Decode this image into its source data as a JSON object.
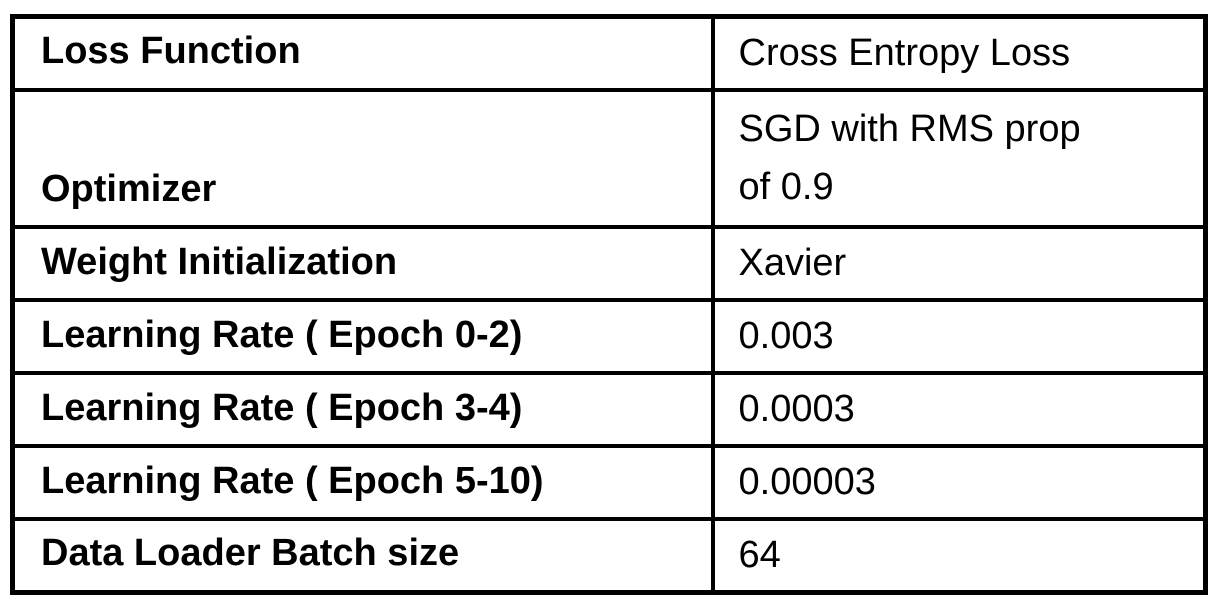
{
  "colors": {
    "border": "#000000",
    "text": "#000000",
    "background": "#ffffff"
  },
  "chart_data": {
    "type": "table",
    "has_header_row": false,
    "columns_count": 2,
    "layout": {
      "label_column_bold": true,
      "grid": "all-borders-black",
      "tall_row_index": 1
    },
    "rows": [
      {
        "label": "Loss Function",
        "value": "Cross Entropy Loss"
      },
      {
        "label": "Optimizer",
        "value": "SGD with RMS prop of 0.9"
      },
      {
        "label": "Weight Initialization",
        "value": "Xavier"
      },
      {
        "label": "Learning Rate ( Epoch 0-2)",
        "value": "0.003"
      },
      {
        "label": "Learning Rate ( Epoch 3-4)",
        "value": "0.0003"
      },
      {
        "label": "Learning Rate ( Epoch 5-10)",
        "value": "0.00003"
      },
      {
        "label": "Data Loader Batch size",
        "value": "64"
      }
    ]
  }
}
